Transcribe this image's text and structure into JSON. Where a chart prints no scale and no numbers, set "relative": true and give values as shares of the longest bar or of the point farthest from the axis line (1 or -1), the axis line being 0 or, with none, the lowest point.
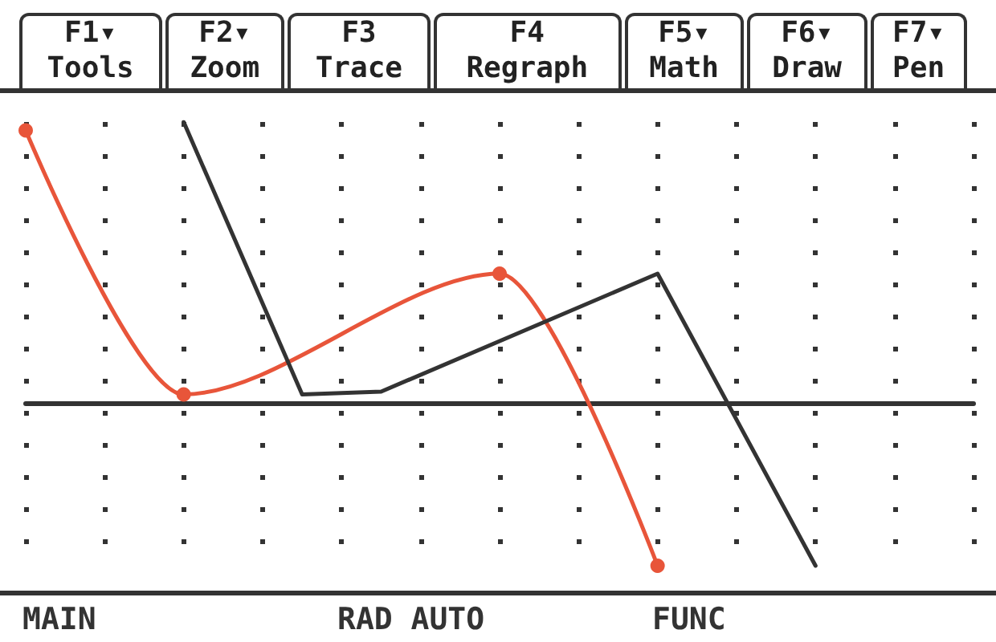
{
  "chart_data": {
    "type": "line",
    "relative": true,
    "grid": "x",
    "categories": [
      null,
      null,
      null,
      null,
      null,
      null,
      null,
      null,
      null,
      null,
      null,
      null,
      null,
      null,
      null,
      null,
      null,
      null,
      null,
      null,
      null,
      null,
      null,
      null,
      null
    ],
    "series": [
      {
        "color": "#e8553a",
        "marker": "circle",
        "line_style": "solid",
        "values": [
          0.97,
          null,
          null,
          null,
          0.03,
          null,
          null,
          null,
          null,
          null,
          null,
          null,
          0.46,
          null,
          null,
          null,
          -0.58,
          null,
          null,
          null,
          null,
          null,
          null,
          null,
          null
        ]
      },
      {
        "color": "#333333",
        "marker": "none",
        "line_style": "solid",
        "values": [
          null,
          null,
          null,
          null,
          1,
          null,
          null,
          0.03,
          null,
          0.04,
          null,
          null,
          null,
          null,
          null,
          null,
          0.46,
          null,
          null,
          null,
          -0.58,
          null,
          null,
          null,
          null
        ]
      }
    ],
    "annotations": [
      "F1▾ Tools",
      "F2▾ Zoom",
      "F3 Trace",
      "F4 Regraph",
      "F5▾ Math",
      "F6▾ Draw",
      "F7▾ Pen",
      "MAIN",
      "RAD AUTO",
      "FUNC"
    ]
  }
}
